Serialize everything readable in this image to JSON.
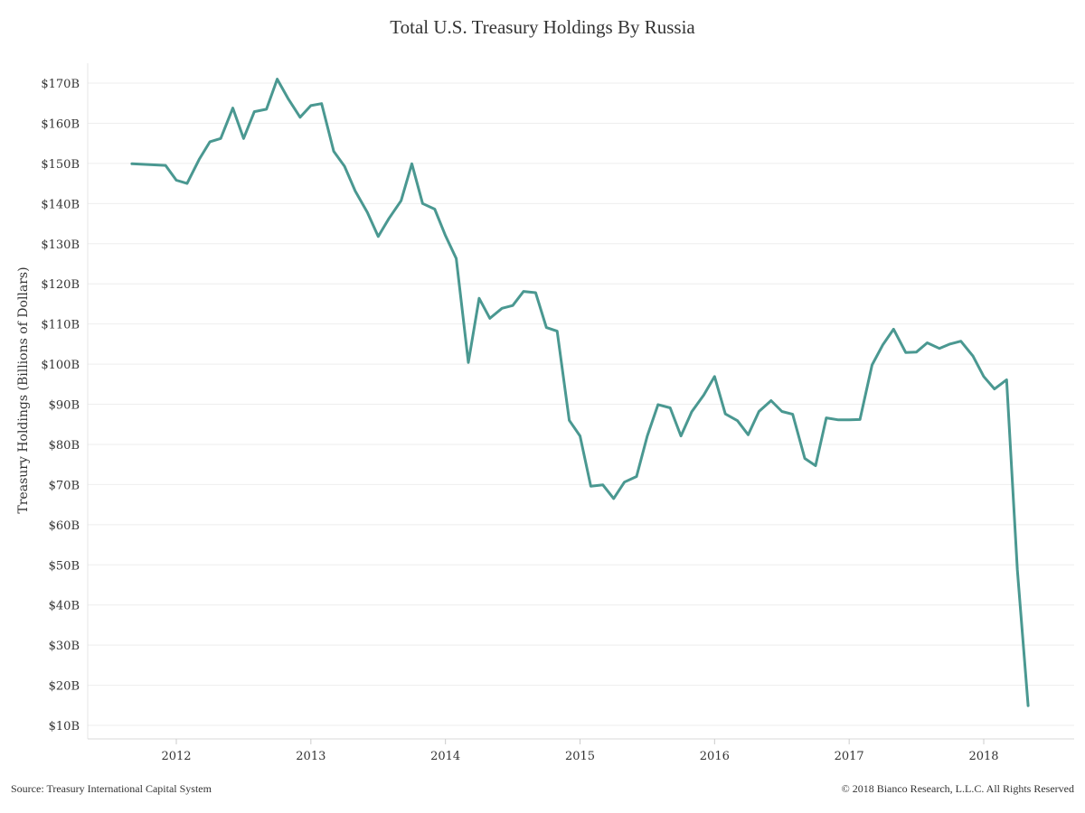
{
  "chart_data": {
    "type": "line",
    "title": "Total U.S. Treasury Holdings By Russia",
    "ylabel": "Treasury Holdings (Billions of Dollars)",
    "xlabel": "",
    "ylim": [
      10,
      170
    ],
    "xlim": [
      2011.55,
      2018.55
    ],
    "y_ticks": [
      10,
      20,
      30,
      40,
      50,
      60,
      70,
      80,
      90,
      100,
      110,
      120,
      130,
      140,
      150,
      160,
      170
    ],
    "y_tick_labels": [
      "$10B",
      "$20B",
      "$30B",
      "$40B",
      "$50B",
      "$60B",
      "$70B",
      "$80B",
      "$90B",
      "$100B",
      "$110B",
      "$120B",
      "$130B",
      "$140B",
      "$150B",
      "$160B",
      "$170B"
    ],
    "x_ticks": [
      2012,
      2013,
      2014,
      2015,
      2016,
      2017,
      2018
    ],
    "x_tick_labels": [
      "2012",
      "2013",
      "2014",
      "2015",
      "2016",
      "2017",
      "2018"
    ],
    "grid": true,
    "series": [
      {
        "color": "#4a9891",
        "x": [
          2011.67,
          2011.92,
          2012.0,
          2012.08,
          2012.17,
          2012.25,
          2012.33,
          2012.42,
          2012.5,
          2012.58,
          2012.67,
          2012.75,
          2012.83,
          2012.92,
          2013.0,
          2013.08,
          2013.17,
          2013.25,
          2013.33,
          2013.42,
          2013.5,
          2013.58,
          2013.67,
          2013.75,
          2013.83,
          2013.92,
          2014.0,
          2014.08,
          2014.17,
          2014.25,
          2014.33,
          2014.42,
          2014.5,
          2014.58,
          2014.67,
          2014.75,
          2014.83,
          2014.92,
          2015.0,
          2015.08,
          2015.17,
          2015.25,
          2015.33,
          2015.42,
          2015.5,
          2015.58,
          2015.67,
          2015.75,
          2015.83,
          2015.92,
          2016.0,
          2016.08,
          2016.17,
          2016.25,
          2016.33,
          2016.42,
          2016.5,
          2016.58,
          2016.67,
          2016.75,
          2016.83,
          2016.92,
          2017.0,
          2017.08,
          2017.17,
          2017.25,
          2017.33,
          2017.42,
          2017.5,
          2017.58,
          2017.67,
          2017.75,
          2017.83,
          2017.92,
          2018.0,
          2018.08,
          2018.17,
          2018.25,
          2018.33
        ],
        "values": [
          149.9,
          149.5,
          145.8,
          145.0,
          151.0,
          155.4,
          156.2,
          163.8,
          156.2,
          162.9,
          163.5,
          171.0,
          166.2,
          161.5,
          164.4,
          164.9,
          153.0,
          149.3,
          143.1,
          137.8,
          131.8,
          136.3,
          140.7,
          149.9,
          140.0,
          138.6,
          132.0,
          126.3,
          100.4,
          116.4,
          111.4,
          113.9,
          114.6,
          118.1,
          117.8,
          109.1,
          108.2,
          86.0,
          82.1,
          69.6,
          69.9,
          66.5,
          70.6,
          72.0,
          82.1,
          89.9,
          89.1,
          82.1,
          88.1,
          92.3,
          96.9,
          87.6,
          85.9,
          82.4,
          88.2,
          90.9,
          88.2,
          87.5,
          76.5,
          74.7,
          86.6,
          86.1,
          86.1,
          86.2,
          99.8,
          104.8,
          108.7,
          102.9,
          103.0,
          105.3,
          103.9,
          105.0,
          105.7,
          102.0,
          96.9,
          93.8,
          96.1,
          48.7,
          14.9
        ]
      }
    ]
  },
  "footer": {
    "source": "Source: Treasury International Capital System",
    "copyright": "© 2018 Bianco Research, L.L.C. All Rights Reserved"
  }
}
